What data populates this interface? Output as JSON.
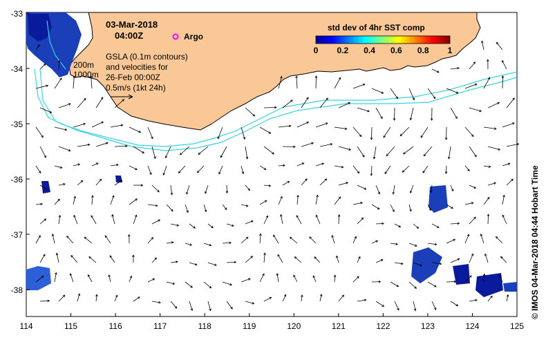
{
  "date_line": "03-Mar-2018",
  "time_line": "04:00Z",
  "argo_label": "Argo",
  "gsla_lines": [
    "GSLA (0.1m contours)",
    "and velocities for",
    "26-Feb 00:00Z",
    "0.5m/s (1kt 24h)"
  ],
  "isobath_labels": [
    "200m",
    "1000m"
  ],
  "colorbar": {
    "title": "std dev of 4hr SST comp",
    "ticks": [
      "0",
      "0.2",
      "0.4",
      "0.6",
      "0.8",
      "1"
    ]
  },
  "credit": "© IMOS 04-Mar-2018 04:44 Hobart Time",
  "x_ticks": [
    "114",
    "115",
    "116",
    "117",
    "118",
    "119",
    "120",
    "121",
    "122",
    "123",
    "124",
    "125"
  ],
  "y_ticks": [
    "-33",
    "-34",
    "-35",
    "-36",
    "-37",
    "-38"
  ],
  "colors": {
    "land": "#f9c896",
    "contour": "#36d3df",
    "argo": "#ff00ff",
    "sst_dark": "#0a1a9c",
    "sst_mid": "#2c5fd8"
  }
}
